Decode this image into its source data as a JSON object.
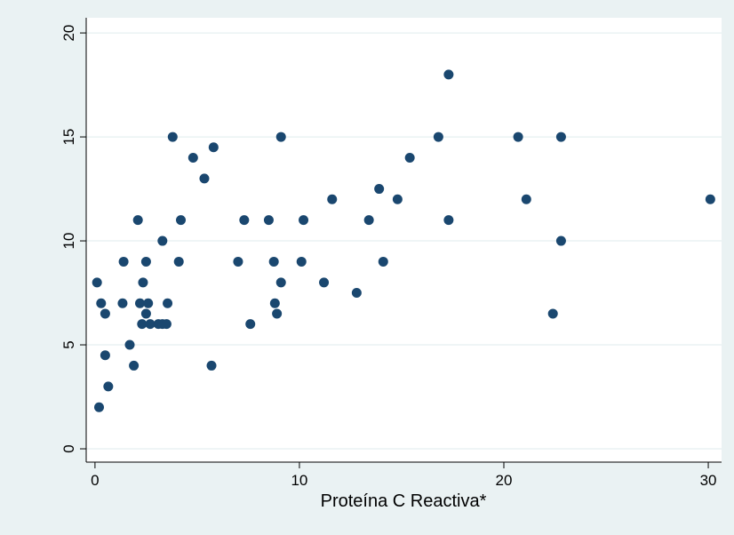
{
  "chart_data": {
    "type": "scatter",
    "x_label": "Proteína C Reactiva*",
    "x": [
      0.1,
      0.3,
      0.5,
      0.5,
      0.65,
      0.2,
      1.4,
      1.35,
      1.7,
      1.9,
      2.1,
      2.2,
      2.35,
      2.3,
      2.5,
      2.5,
      2.6,
      2.7,
      3.1,
      3.3,
      3.3,
      3.5,
      3.55,
      3.8,
      4.1,
      4.2,
      4.8,
      5.35,
      5.7,
      5.8,
      7.0,
      7.3,
      7.6,
      8.5,
      8.75,
      8.8,
      8.9,
      9.1,
      9.1,
      10.1,
      10.2,
      11.2,
      11.6,
      12.8,
      13.4,
      13.9,
      14.1,
      14.8,
      15.4,
      16.8,
      17.3,
      17.3,
      20.7,
      21.1,
      22.4,
      22.8,
      22.8,
      30.1
    ],
    "y": [
      8,
      7,
      6.5,
      4.5,
      3,
      2,
      9,
      7,
      5,
      4,
      11,
      7,
      8,
      6,
      9,
      6.5,
      7,
      6,
      6,
      6,
      10,
      6,
      7,
      15,
      9,
      11,
      14,
      13,
      4,
      14.5,
      9,
      11,
      6,
      11,
      9,
      7,
      6.5,
      8,
      15,
      9,
      11,
      8,
      12,
      7.5,
      11,
      12.5,
      9,
      12,
      14,
      15,
      18,
      11,
      15,
      12,
      6.5,
      15,
      10,
      12
    ],
    "color": "#1a476f",
    "xlim": [
      -0.43,
      30.65
    ],
    "ylim": [
      -0.64,
      20.73
    ],
    "xticks": [
      0,
      10,
      20,
      30
    ],
    "yticks": [
      0,
      5,
      10,
      15,
      20
    ],
    "grid": true
  }
}
